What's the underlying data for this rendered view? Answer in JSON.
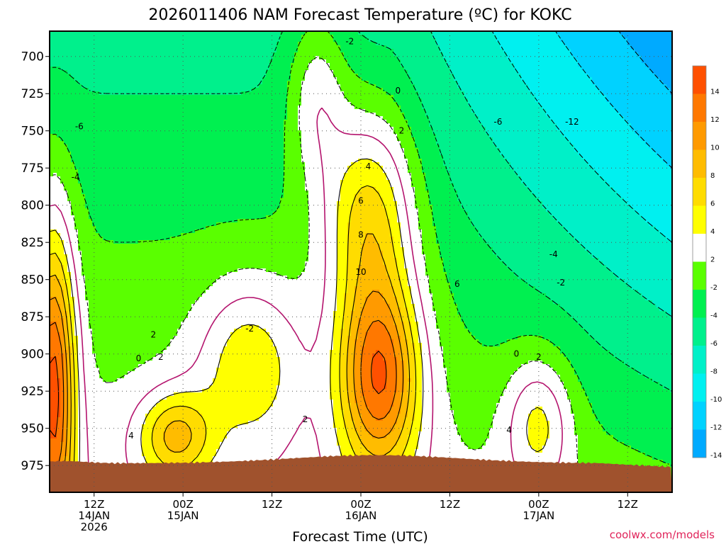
{
  "chart_data": {
    "type": "heatmap",
    "title": "2026011406 NAM Forecast Temperature (ºC) for KOKC",
    "xlabel": "Forecast Time (UTC)",
    "ylabel": "",
    "x_ticks": [
      {
        "hour": 12,
        "labels": [
          "12Z",
          "14JAN",
          "2026"
        ]
      },
      {
        "hour": 24,
        "labels": [
          "00Z",
          "15JAN"
        ]
      },
      {
        "hour": 36,
        "labels": [
          "12Z"
        ]
      },
      {
        "hour": 48,
        "labels": [
          "00Z",
          "16JAN"
        ]
      },
      {
        "hour": 60,
        "labels": [
          "12Z"
        ]
      },
      {
        "hour": 72,
        "labels": [
          "00Z",
          "17JAN"
        ]
      },
      {
        "hour": 84,
        "labels": [
          "12Z"
        ]
      }
    ],
    "xlim_hours": [
      6,
      90
    ],
    "y_ticks": [
      "700",
      "725",
      "750",
      "775",
      "800",
      "825",
      "850",
      "875",
      "900",
      "925",
      "950",
      "975"
    ],
    "ylim_hpa": [
      683,
      993
    ],
    "grid": "dotted",
    "legend": {
      "placement": "right",
      "labels": [
        "14",
        "12",
        "10",
        "8",
        "6",
        "4",
        "2",
        "-2",
        "-4",
        "-6",
        "-8",
        "-10",
        "-12",
        "-14"
      ],
      "colors": [
        "#ff5000",
        "#ff7800",
        "#ff9a00",
        "#ffbc00",
        "#ffdc00",
        "#ffff00",
        "#ffffff",
        "#5aff00",
        "#00f050",
        "#00f08c",
        "#00f0c8",
        "#00f0f0",
        "#00d2ff",
        "#00aaff"
      ]
    },
    "colors": {
      "ground": "#a0522d",
      "zero_line": "#b4146e",
      "contour": "#000000"
    },
    "contour_labels": [
      {
        "text": "-2",
        "hour": 46.5,
        "p": 690
      },
      {
        "text": "0",
        "hour": 53,
        "p": 723
      },
      {
        "text": "2",
        "hour": 53.5,
        "p": 750
      },
      {
        "text": "-6",
        "hour": 10,
        "p": 747
      },
      {
        "text": "-4",
        "hour": 9.5,
        "p": 781
      },
      {
        "text": "4",
        "hour": 49,
        "p": 774
      },
      {
        "text": "6",
        "hour": 48,
        "p": 797
      },
      {
        "text": "8",
        "hour": 48,
        "p": 820
      },
      {
        "text": "10",
        "hour": 48,
        "p": 845
      },
      {
        "text": "6",
        "hour": 61,
        "p": 853
      },
      {
        "text": "-6",
        "hour": 66.5,
        "p": 744
      },
      {
        "text": "-12",
        "hour": 76.5,
        "p": 744
      },
      {
        "text": "-4",
        "hour": 74,
        "p": 833
      },
      {
        "text": "-2",
        "hour": 75,
        "p": 852
      },
      {
        "text": "2",
        "hour": 20,
        "p": 887
      },
      {
        "text": "-2",
        "hour": 33,
        "p": 883
      },
      {
        "text": "0",
        "hour": 18,
        "p": 903
      },
      {
        "text": "2",
        "hour": 21,
        "p": 902
      },
      {
        "text": "0",
        "hour": 69,
        "p": 900
      },
      {
        "text": "2",
        "hour": 72,
        "p": 902
      },
      {
        "text": "2",
        "hour": 40.5,
        "p": 944
      },
      {
        "text": "4",
        "hour": 17,
        "p": 955
      },
      {
        "text": "4",
        "hour": 68,
        "p": 951
      }
    ]
  },
  "credit": "coolwx.com/models"
}
